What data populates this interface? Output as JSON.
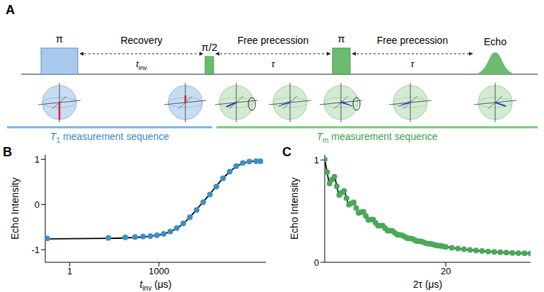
{
  "diagram": {
    "panel": "A",
    "pulses": [
      {
        "label": "π"
      },
      {
        "label": "π/2"
      },
      {
        "label": "π"
      }
    ],
    "intervals": [
      {
        "label": "Recovery",
        "duration": {
          "text": "t",
          "sub": "inv"
        }
      },
      {
        "label": "Free precession",
        "duration": {
          "text": "τ"
        }
      },
      {
        "label": "Free precession",
        "duration": {
          "text": "τ"
        }
      }
    ],
    "echo": "Echo",
    "sequences": [
      {
        "text": "T",
        "sub": "1",
        "after": " measurement sequence"
      },
      {
        "text": "T",
        "sub": "m",
        "after": " measurement sequence"
      }
    ]
  },
  "chart_data": [
    {
      "type": "scatter",
      "panel": "B",
      "xlabel": {
        "text": "t",
        "sub": "inv",
        "after": " (μs)"
      },
      "ylabel": {
        "text": "Echo Intensity"
      },
      "log": "x",
      "grid": false,
      "xlim": [
        0.15,
        4000000
      ],
      "xticks": [
        1,
        1000
      ],
      "ylim": [
        -1.28,
        1.1
      ],
      "yticks": [
        -1,
        0,
        1
      ],
      "x": [
        0.175,
        20,
        74,
        158,
        294,
        514,
        860,
        1440,
        2400,
        3980,
        6600,
        11000,
        18500,
        30900,
        51500,
        85900,
        143000,
        240000,
        398000,
        664000,
        1100000,
        1850000,
        2600000
      ],
      "series": [
        {
          "type": "scatter",
          "marker": "circle",
          "color": "#3d8fc6",
          "values": [
            -0.75,
            -0.74,
            -0.73,
            -0.72,
            -0.71,
            -0.7,
            -0.68,
            -0.65,
            -0.6,
            -0.52,
            -0.42,
            -0.28,
            -0.12,
            0.05,
            0.22,
            0.4,
            0.58,
            0.73,
            0.85,
            0.92,
            0.95,
            0.96,
            0.96
          ]
        },
        {
          "type": "line",
          "line_style": "solid",
          "color": "#000000",
          "values": [
            -0.76,
            -0.75,
            -0.74,
            -0.73,
            -0.72,
            -0.7,
            -0.68,
            -0.65,
            -0.6,
            -0.53,
            -0.42,
            -0.28,
            -0.11,
            0.06,
            0.23,
            0.41,
            0.58,
            0.72,
            0.84,
            0.91,
            0.95,
            0.96,
            0.96
          ]
        }
      ]
    },
    {
      "type": "scatter",
      "panel": "C",
      "xlabel": {
        "text": "2τ (μs)"
      },
      "ylabel": {
        "text": "Echo Intensity"
      },
      "grid": false,
      "xlim": [
        0,
        34
      ],
      "xticks": [
        20
      ],
      "ylim": [
        0,
        1.05
      ],
      "yticks": [
        0,
        1
      ],
      "x": [
        0,
        0.4,
        0.8,
        1.2,
        1.6,
        2.0,
        2.4,
        2.8,
        3.2,
        3.6,
        4.0,
        4.4,
        4.8,
        5.2,
        5.6,
        6.0,
        6.4,
        6.8,
        7.2,
        7.6,
        8.0,
        8.4,
        8.8,
        9.2,
        9.6,
        10.0,
        10.4,
        10.8,
        11.2,
        11.6,
        12.0,
        12.4,
        12.8,
        13.2,
        13.6,
        14.0,
        14.4,
        14.8,
        15.2,
        15.6,
        16.0,
        16.4,
        16.8,
        17.2,
        17.6,
        18.0,
        18.4,
        18.8,
        19.2,
        19.6,
        20.0,
        21,
        22,
        23,
        24,
        25,
        26,
        27,
        28,
        29,
        30,
        31,
        32,
        33,
        34
      ],
      "series": [
        {
          "type": "scatter",
          "marker": "circle",
          "color": "#4aa85a",
          "values": [
            1.005,
            0.881,
            0.771,
            0.808,
            0.835,
            0.742,
            0.658,
            0.681,
            0.698,
            0.627,
            0.563,
            0.577,
            0.586,
            0.531,
            0.482,
            0.49,
            0.494,
            0.452,
            0.415,
            0.418,
            0.418,
            0.386,
            0.357,
            0.358,
            0.357,
            0.332,
            0.309,
            0.309,
            0.307,
            0.287,
            0.27,
            0.267,
            0.265,
            0.25,
            0.236,
            0.234,
            0.231,
            0.219,
            0.208,
            0.206,
            0.203,
            0.193,
            0.185,
            0.182,
            0.179,
            0.172,
            0.166,
            0.163,
            0.161,
            0.155,
            0.151,
            0.142,
            0.134,
            0.127,
            0.121,
            0.115,
            0.11,
            0.105,
            0.102,
            0.098,
            0.095,
            0.092,
            0.09,
            0.088,
            0.086
          ]
        },
        {
          "type": "line",
          "line_style": "solid",
          "color": "#000000",
          "values": [
            1.005,
            0.881,
            0.771,
            0.808,
            0.835,
            0.742,
            0.658,
            0.681,
            0.698,
            0.627,
            0.563,
            0.577,
            0.586,
            0.531,
            0.482,
            0.49,
            0.494,
            0.452,
            0.415,
            0.418,
            0.418,
            0.386,
            0.357,
            0.358,
            0.357,
            0.332,
            0.309,
            0.309,
            0.307,
            0.287,
            0.27,
            0.267,
            0.265,
            0.25,
            0.236,
            0.234,
            0.231,
            0.219,
            0.208,
            0.206,
            0.203,
            0.193,
            0.185,
            0.182,
            0.179,
            0.172,
            0.166,
            0.163,
            0.161,
            0.155,
            0.151,
            0.142,
            0.134,
            0.127,
            0.121,
            0.115,
            0.11,
            0.105,
            0.102,
            0.098,
            0.095,
            0.092,
            0.09,
            0.088,
            0.086
          ]
        }
      ]
    }
  ]
}
